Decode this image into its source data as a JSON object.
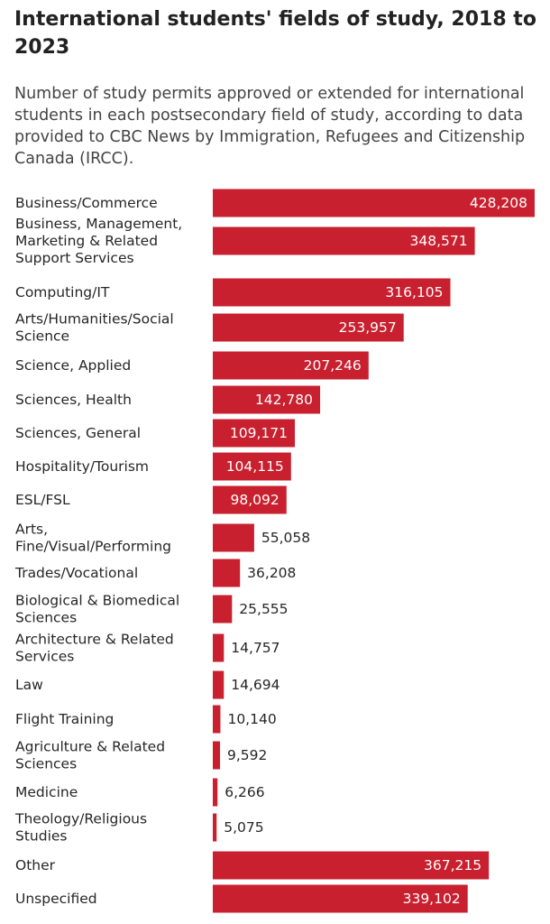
{
  "chart_data": {
    "type": "bar",
    "orientation": "horizontal",
    "title": "International students' fields of study, 2018 to 2023",
    "subtitle": "Number of study permits approved or extended for international students in each postsecondary field of study, according to data provided to CBC News by Immigration, Refugees and Citizenship Canada (IRCC).",
    "bar_color": "#c8202f",
    "xlim": [
      0,
      428208
    ],
    "grid": false,
    "legend": "none",
    "categories": [
      [
        "Business/Commerce"
      ],
      [
        "Business, Management,",
        "Marketing & Related",
        "Support Services"
      ],
      [
        "Computing/IT"
      ],
      [
        "Arts/Humanities/Social",
        "Science"
      ],
      [
        "Science, Applied"
      ],
      [
        "Sciences, Health"
      ],
      [
        "Sciences, General"
      ],
      [
        "Hospitality/Tourism"
      ],
      [
        "ESL/FSL"
      ],
      [
        "Arts,",
        "Fine/Visual/Performing"
      ],
      [
        "Trades/Vocational"
      ],
      [
        "Biological & Biomedical",
        "Sciences"
      ],
      [
        "Architecture & Related",
        "Services"
      ],
      [
        "Law"
      ],
      [
        "Flight Training"
      ],
      [
        "Agriculture & Related",
        "Sciences"
      ],
      [
        "Medicine"
      ],
      [
        "Theology/Religious",
        "Studies"
      ],
      [
        "Other"
      ],
      [
        "Unspecified"
      ]
    ],
    "values": [
      428208,
      348571,
      316105,
      253957,
      207246,
      142780,
      109171,
      104115,
      98092,
      55058,
      36208,
      25555,
      14757,
      14694,
      10140,
      9592,
      6266,
      5075,
      367215,
      339102
    ],
    "value_labels": [
      "428,208",
      "348,571",
      "316,105",
      "253,957",
      "207,246",
      "142,780",
      "109,171",
      "104,115",
      "98,092",
      "55,058",
      "36,208",
      "25,555",
      "14,757",
      "14,694",
      "10,140",
      "9,592",
      "6,266",
      "5,075",
      "367,215",
      "339,102"
    ]
  }
}
